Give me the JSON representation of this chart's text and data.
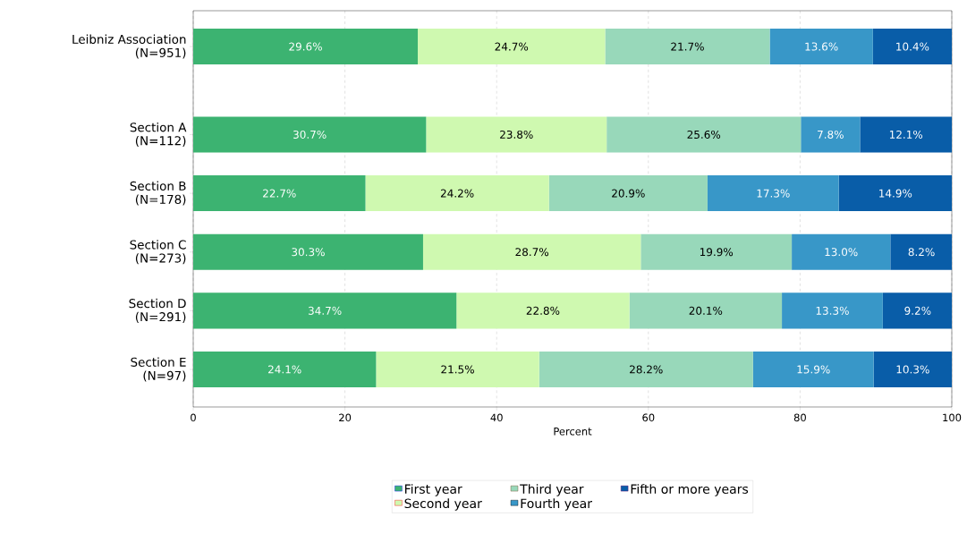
{
  "chart_data": {
    "type": "bar",
    "orientation": "horizontal",
    "stacked": true,
    "xlabel": "Percent",
    "categories": [
      "Leibniz Association\n(N=951)",
      "Section A\n(N=112)",
      "Section B\n(N=178)",
      "Section C\n(N=273)",
      "Section D\n(N=291)",
      "Section E\n(N=97)"
    ],
    "series": [
      {
        "name": "First year",
        "color": "#3cb371",
        "values": [
          29.6,
          30.7,
          22.7,
          30.3,
          34.7,
          24.1
        ],
        "value_labels": [
          "29.6%",
          "30.7%",
          "22.7%",
          "30.3%",
          "34.7%",
          "24.1%"
        ]
      },
      {
        "name": "Second year",
        "color": "#cff9b0",
        "values": [
          24.7,
          23.8,
          24.2,
          28.7,
          22.8,
          21.5
        ],
        "value_labels": [
          "24.7%",
          "23.8%",
          "24.2%",
          "28.7%",
          "22.8%",
          "21.5%"
        ]
      },
      {
        "name": "Third year",
        "color": "#98d8ba",
        "values": [
          21.7,
          25.6,
          20.9,
          19.9,
          20.1,
          28.2
        ],
        "value_labels": [
          "21.7%",
          "25.6%",
          "20.9%",
          "19.9%",
          "20.1%",
          "28.2%"
        ]
      },
      {
        "name": "Fourth year",
        "color": "#3897c8",
        "values": [
          13.6,
          7.8,
          17.3,
          13.0,
          13.3,
          15.9
        ],
        "value_labels": [
          "13.6%",
          "7.8%",
          "17.3%",
          "13.0%",
          "13.3%",
          "15.9%"
        ]
      },
      {
        "name": "Fifth or more years",
        "color": "#095da8",
        "values": [
          10.4,
          12.1,
          14.9,
          8.2,
          9.2,
          10.3
        ],
        "value_labels": [
          "10.4%",
          "12.1%",
          "14.9%",
          "8.2%",
          "9.2%",
          "10.3%"
        ]
      }
    ],
    "xlim": [
      0,
      100
    ],
    "xticks": [
      0,
      20,
      40,
      60,
      80,
      100
    ],
    "grid": "x",
    "legend": "bottom"
  }
}
